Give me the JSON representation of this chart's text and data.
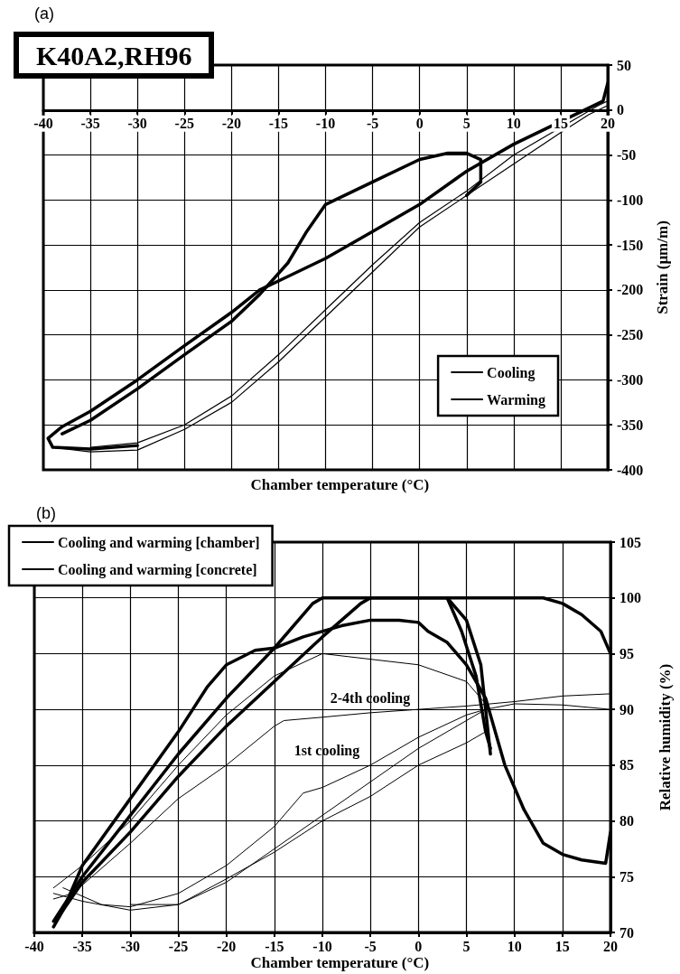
{
  "chart_data": [
    {
      "type": "line",
      "title": "K40A2,RH96",
      "annotations": [
        "(a)"
      ],
      "xlabel": "Chamber temperature (°C)",
      "ylabel": "Strain (μm/m)",
      "xlim": [
        -40,
        20
      ],
      "xticks": [
        -40,
        -35,
        -30,
        -25,
        -20,
        -15,
        -10,
        -5,
        0,
        5,
        10,
        15,
        20
      ],
      "ylim": [
        -400,
        50
      ],
      "yticks": [
        -400,
        -350,
        -300,
        -250,
        -200,
        -150,
        -100,
        -50,
        0,
        50
      ],
      "grid": true,
      "legend": "bottom right",
      "marker": "none",
      "line_style": "solid",
      "series": [
        {
          "name": "Cooling",
          "color": "#000000",
          "x": [
            20,
            19.5,
            10,
            5,
            0,
            -5,
            -10,
            -14,
            -17,
            -20,
            -25,
            -30,
            -35,
            -38,
            -39.5,
            -39,
            -35,
            -30
          ],
          "values": [
            30,
            10,
            -38,
            -68,
            -105,
            -135,
            -165,
            -185,
            -200,
            -225,
            -262,
            -300,
            -335,
            -352,
            -365,
            -375,
            -377,
            -373
          ]
        },
        {
          "name": "Warming",
          "color": "#000000",
          "x": [
            -39,
            -35,
            -30,
            -25,
            -20,
            -15,
            -10,
            -5,
            0,
            5,
            10,
            15,
            18,
            20
          ],
          "values": [
            -375,
            -380,
            -378,
            -355,
            -325,
            -280,
            -230,
            -180,
            -130,
            -95,
            -60,
            -25,
            -5,
            5
          ]
        },
        {
          "color": "#000000",
          "x": [
            -38,
            -35,
            -30,
            -25,
            -20,
            -17,
            -14,
            -12,
            -10,
            -5,
            0,
            3,
            5,
            6.5,
            6.5,
            5
          ],
          "values": [
            -360,
            -345,
            -310,
            -272,
            -235,
            -205,
            -170,
            -135,
            -105,
            -80,
            -55,
            -48,
            -48,
            -55,
            -80,
            -95
          ]
        },
        {
          "color": "#000000",
          "x": [
            -35,
            -30,
            -25,
            -20,
            -15,
            -10,
            -5,
            0,
            5,
            10,
            19,
            20
          ],
          "values": [
            -375,
            -370,
            -350,
            -318,
            -272,
            -222,
            -172,
            -125,
            -90,
            -50,
            5,
            10
          ]
        }
      ]
    },
    {
      "type": "line",
      "annotations": [
        "(b)",
        "2-4th cooling",
        "1st cooling"
      ],
      "xlabel": "Chamber temperature (°C)",
      "ylabel": "Relative humidity (%)",
      "xlim": [
        -40,
        20
      ],
      "xticks": [
        -40,
        -35,
        -30,
        -25,
        -20,
        -15,
        -10,
        -5,
        0,
        5,
        10,
        15,
        20
      ],
      "ylim": [
        70,
        105
      ],
      "yticks": [
        70,
        75,
        80,
        85,
        90,
        95,
        100,
        105
      ],
      "grid": true,
      "legend": "top left",
      "marker": "none",
      "line_style": "solid",
      "series": [
        {
          "name": "Cooling and warming [chamber]",
          "color": "#000000",
          "x": [
            -38,
            -37,
            -35,
            -30,
            -25,
            -20,
            -15,
            -10,
            -6,
            -5,
            3,
            5,
            13,
            15,
            17,
            19,
            20
          ],
          "values": [
            70.5,
            72,
            74.5,
            79,
            84,
            88.5,
            92.5,
            96.5,
            99.5,
            100,
            100,
            100,
            100,
            99.5,
            98.5,
            97,
            95
          ]
        },
        {
          "name": "Cooling and warming [concrete]",
          "color": "#000000",
          "x": [
            -38,
            -36,
            -30,
            -25,
            -20,
            -15,
            -14,
            -10,
            -5,
            0,
            5,
            10,
            15,
            20
          ],
          "values": [
            73,
            73.5,
            78,
            82,
            85,
            88.5,
            89,
            89.3,
            89.7,
            90,
            90.3,
            90.7,
            91.2,
            91.4
          ]
        },
        {
          "color": "#000000",
          "x": [
            -38,
            -35,
            -30,
            -25,
            -20,
            -15,
            -11,
            -10,
            3,
            5,
            6.5,
            7.5
          ],
          "values": [
            71,
            75,
            80.5,
            86,
            91,
            95.5,
            99.5,
            100,
            100,
            98,
            94,
            86
          ]
        },
        {
          "color": "#000000",
          "x": [
            -37,
            -35,
            -30,
            -25,
            -22,
            -20,
            -17,
            -15,
            -12,
            -8,
            -5,
            -2,
            0,
            1,
            3,
            5,
            7,
            8,
            9,
            10,
            11,
            13,
            15,
            17,
            19.5,
            20
          ],
          "values": [
            72,
            76,
            82,
            88,
            92,
            94,
            95.3,
            95.5,
            96.5,
            97.5,
            98,
            98,
            97.8,
            97,
            96,
            94,
            91,
            88,
            85,
            83,
            81,
            78,
            77,
            76.5,
            76.2,
            79
          ]
        },
        {
          "color": "#000000",
          "x": [
            3,
            4.5,
            6,
            7,
            7.5
          ],
          "values": [
            100,
            97,
            93,
            88,
            86.5
          ]
        },
        {
          "color": "#000000",
          "x": [
            -38,
            -35,
            -30,
            -25,
            -20,
            -15,
            -10,
            -5,
            0,
            5,
            7
          ],
          "values": [
            74,
            76,
            80,
            85,
            89.5,
            93,
            95,
            94.5,
            94,
            92.5,
            90.5
          ]
        },
        {
          "color": "#000000",
          "x": [
            -38,
            -35,
            -30,
            -25,
            -20,
            -15,
            -10,
            -5,
            0,
            5,
            7,
            10,
            15,
            20
          ],
          "values": [
            73.5,
            72.8,
            72,
            72.5,
            74.5,
            77.5,
            80.5,
            83.5,
            86.5,
            89,
            90,
            90.5,
            90.4,
            90
          ]
        },
        {
          "color": "#000000",
          "x": [
            -37,
            -33,
            -30,
            -25,
            -20,
            -15,
            -12,
            -10,
            -5,
            0,
            5,
            7
          ],
          "values": [
            74,
            72.5,
            72.3,
            73.5,
            76,
            79.5,
            82.5,
            83,
            85,
            87.5,
            89.5,
            90
          ]
        },
        {
          "color": "#000000",
          "x": [
            -30,
            -25,
            -20,
            -15,
            -10,
            -5,
            0,
            5,
            7
          ],
          "values": [
            72.5,
            72.5,
            74.8,
            77.2,
            80,
            82.2,
            85,
            87,
            88
          ]
        }
      ]
    }
  ]
}
